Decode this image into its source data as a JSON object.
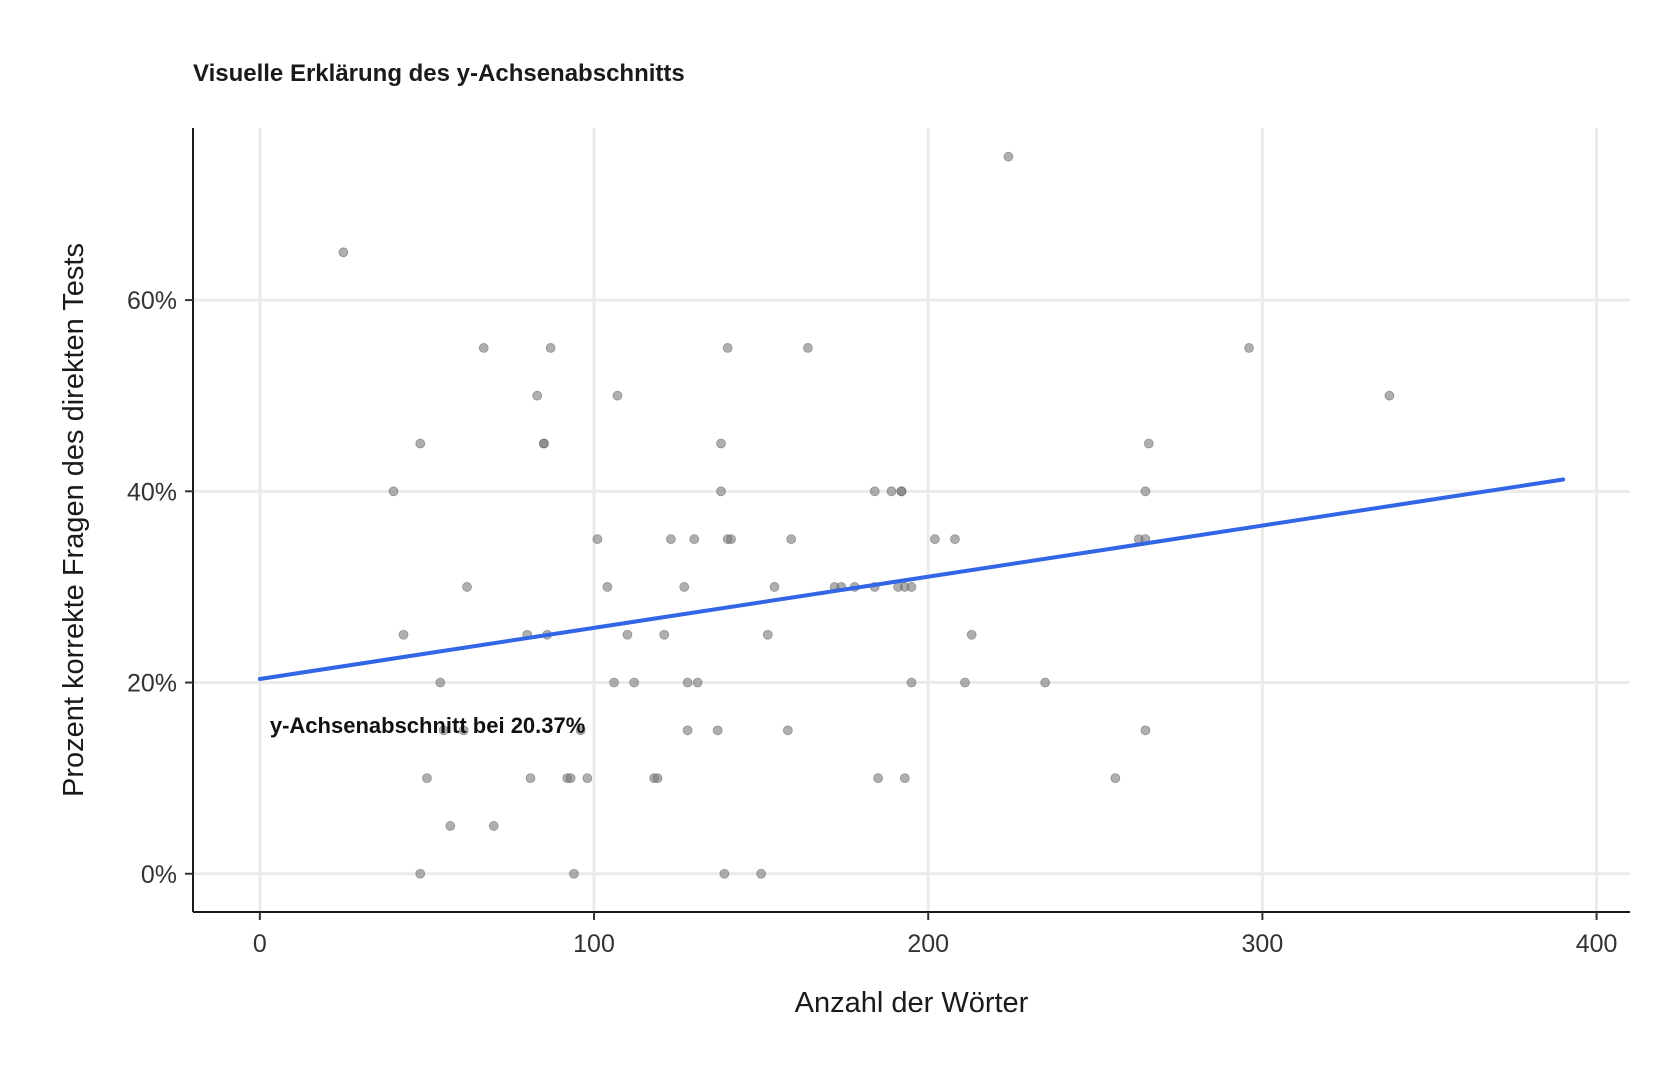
{
  "chart_data": {
    "type": "scatter",
    "title": "Visuelle Erklärung des y-Achsenabschnitts",
    "xlabel": "Anzahl der Wörter",
    "ylabel": "Prozent korrekte Fragen des direkten Tests",
    "xlim": [
      -20,
      410
    ],
    "ylim": [
      -0.04,
      0.78
    ],
    "x_ticks": [
      0,
      100,
      200,
      300,
      400
    ],
    "x_tick_labels": [
      "0",
      "100",
      "200",
      "300",
      "400"
    ],
    "y_ticks": [
      0,
      0.2,
      0.4,
      0.6
    ],
    "y_tick_labels": [
      "0%",
      "20%",
      "40%",
      "60%"
    ],
    "grid": true,
    "point_color": "#7a7a7a",
    "line_color": "#3366e6",
    "points": [
      {
        "x": 25,
        "y": 0.65
      },
      {
        "x": 40,
        "y": 0.4
      },
      {
        "x": 43,
        "y": 0.25
      },
      {
        "x": 48,
        "y": 0.45
      },
      {
        "x": 48,
        "y": 0.0
      },
      {
        "x": 50,
        "y": 0.1
      },
      {
        "x": 54,
        "y": 0.2
      },
      {
        "x": 55,
        "y": 0.15
      },
      {
        "x": 57,
        "y": 0.05
      },
      {
        "x": 61,
        "y": 0.15
      },
      {
        "x": 62,
        "y": 0.3
      },
      {
        "x": 67,
        "y": 0.55
      },
      {
        "x": 70,
        "y": 0.05
      },
      {
        "x": 80,
        "y": 0.25
      },
      {
        "x": 81,
        "y": 0.1
      },
      {
        "x": 83,
        "y": 0.5
      },
      {
        "x": 85,
        "y": 0.45
      },
      {
        "x": 85,
        "y": 0.45
      },
      {
        "x": 86,
        "y": 0.25
      },
      {
        "x": 87,
        "y": 0.55
      },
      {
        "x": 92,
        "y": 0.1
      },
      {
        "x": 93,
        "y": 0.1
      },
      {
        "x": 94,
        "y": 0.0
      },
      {
        "x": 96,
        "y": 0.15
      },
      {
        "x": 98,
        "y": 0.1
      },
      {
        "x": 101,
        "y": 0.35
      },
      {
        "x": 104,
        "y": 0.3
      },
      {
        "x": 106,
        "y": 0.2
      },
      {
        "x": 107,
        "y": 0.5
      },
      {
        "x": 110,
        "y": 0.25
      },
      {
        "x": 112,
        "y": 0.2
      },
      {
        "x": 118,
        "y": 0.1
      },
      {
        "x": 119,
        "y": 0.1
      },
      {
        "x": 121,
        "y": 0.25
      },
      {
        "x": 123,
        "y": 0.35
      },
      {
        "x": 127,
        "y": 0.3
      },
      {
        "x": 128,
        "y": 0.2
      },
      {
        "x": 128,
        "y": 0.15
      },
      {
        "x": 130,
        "y": 0.35
      },
      {
        "x": 131,
        "y": 0.2
      },
      {
        "x": 137,
        "y": 0.15
      },
      {
        "x": 138,
        "y": 0.45
      },
      {
        "x": 138,
        "y": 0.4
      },
      {
        "x": 139,
        "y": 0.0
      },
      {
        "x": 140,
        "y": 0.55
      },
      {
        "x": 140,
        "y": 0.35
      },
      {
        "x": 141,
        "y": 0.35
      },
      {
        "x": 150,
        "y": 0.0
      },
      {
        "x": 152,
        "y": 0.25
      },
      {
        "x": 154,
        "y": 0.3
      },
      {
        "x": 158,
        "y": 0.15
      },
      {
        "x": 159,
        "y": 0.35
      },
      {
        "x": 164,
        "y": 0.55
      },
      {
        "x": 172,
        "y": 0.3
      },
      {
        "x": 174,
        "y": 0.3
      },
      {
        "x": 178,
        "y": 0.3
      },
      {
        "x": 184,
        "y": 0.3
      },
      {
        "x": 184,
        "y": 0.4
      },
      {
        "x": 185,
        "y": 0.1
      },
      {
        "x": 189,
        "y": 0.4
      },
      {
        "x": 191,
        "y": 0.3
      },
      {
        "x": 192,
        "y": 0.4
      },
      {
        "x": 192,
        "y": 0.4
      },
      {
        "x": 193,
        "y": 0.1
      },
      {
        "x": 193,
        "y": 0.3
      },
      {
        "x": 195,
        "y": 0.3
      },
      {
        "x": 195,
        "y": 0.2
      },
      {
        "x": 202,
        "y": 0.35
      },
      {
        "x": 208,
        "y": 0.35
      },
      {
        "x": 211,
        "y": 0.2
      },
      {
        "x": 213,
        "y": 0.25
      },
      {
        "x": 224,
        "y": 0.75
      },
      {
        "x": 235,
        "y": 0.2
      },
      {
        "x": 256,
        "y": 0.1
      },
      {
        "x": 263,
        "y": 0.35
      },
      {
        "x": 265,
        "y": 0.35
      },
      {
        "x": 265,
        "y": 0.4
      },
      {
        "x": 265,
        "y": 0.15
      },
      {
        "x": 266,
        "y": 0.45
      },
      {
        "x": 296,
        "y": 0.55
      },
      {
        "x": 338,
        "y": 0.5
      }
    ],
    "regression": {
      "intercept": 0.2037,
      "slope": 0.000535,
      "x_start": 0,
      "x_end": 390
    },
    "annotations": [
      {
        "text": "y-Achsenabschnitt bei 20.37%",
        "x": 3,
        "y": 0.147
      }
    ]
  }
}
